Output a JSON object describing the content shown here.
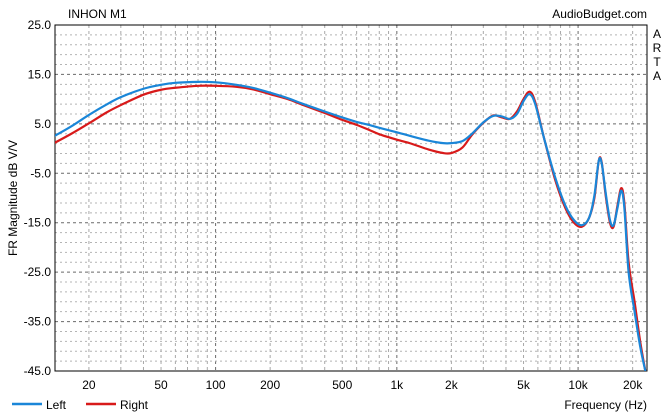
{
  "chart_data": {
    "type": "line",
    "title": "INHON M1",
    "source": "AudioBudget.com",
    "side_label": [
      "A",
      "R",
      "T",
      "A"
    ],
    "xlabel": "Frequency (Hz)",
    "ylabel": "FR Magnitude dB V/V",
    "xscale": "log",
    "xlim": [
      13,
      24000
    ],
    "ylim": [
      -45,
      25
    ],
    "yticks": [
      25.0,
      15.0,
      5.0,
      -5.0,
      -15.0,
      -25.0,
      -35.0,
      -45.0
    ],
    "ytick_labels": [
      "25.0",
      "15.0",
      "5.0",
      "-5.0",
      "-15.0",
      "-25.0",
      "-35.0",
      "-45.0"
    ],
    "xticks": [
      20,
      50,
      100,
      200,
      500,
      1000,
      2000,
      5000,
      10000,
      20000
    ],
    "xtick_labels": [
      "20",
      "50",
      "100",
      "200",
      "500",
      "1k",
      "2k",
      "5k",
      "10k",
      "20k"
    ],
    "grid": true,
    "legend_position": "bottom-left",
    "series": [
      {
        "name": "Left",
        "color": "#1a86d8",
        "points": [
          [
            13,
            2.6
          ],
          [
            16,
            4.5
          ],
          [
            20,
            6.8
          ],
          [
            25,
            8.9
          ],
          [
            30,
            10.4
          ],
          [
            40,
            12.1
          ],
          [
            50,
            12.9
          ],
          [
            60,
            13.3
          ],
          [
            80,
            13.5
          ],
          [
            100,
            13.4
          ],
          [
            130,
            12.9
          ],
          [
            160,
            12.3
          ],
          [
            200,
            11.3
          ],
          [
            250,
            10.2
          ],
          [
            300,
            9.1
          ],
          [
            400,
            7.5
          ],
          [
            500,
            6.3
          ],
          [
            600,
            5.4
          ],
          [
            700,
            4.8
          ],
          [
            800,
            4.2
          ],
          [
            1000,
            3.3
          ],
          [
            1200,
            2.5
          ],
          [
            1500,
            1.6
          ],
          [
            1800,
            1.1
          ],
          [
            2000,
            1.1
          ],
          [
            2300,
            1.5
          ],
          [
            2600,
            3.0
          ],
          [
            3000,
            5.3
          ],
          [
            3400,
            6.6
          ],
          [
            3800,
            6.5
          ],
          [
            4200,
            6.0
          ],
          [
            4600,
            7.0
          ],
          [
            5000,
            9.6
          ],
          [
            5400,
            11.0
          ],
          [
            5800,
            9.0
          ],
          [
            6500,
            2.0
          ],
          [
            7500,
            -6.0
          ],
          [
            8500,
            -11.5
          ],
          [
            9500,
            -14.5
          ],
          [
            10500,
            -15.5
          ],
          [
            11500,
            -14.0
          ],
          [
            12300,
            -9.5
          ],
          [
            13000,
            -2.5
          ],
          [
            13500,
            -3.0
          ],
          [
            14200,
            -9.0
          ],
          [
            15000,
            -14.5
          ],
          [
            15700,
            -15.5
          ],
          [
            16500,
            -12.0
          ],
          [
            17300,
            -8.5
          ],
          [
            18000,
            -12.0
          ],
          [
            19000,
            -25.0
          ],
          [
            20500,
            -33.0
          ],
          [
            22000,
            -40.0
          ],
          [
            23500,
            -45.0
          ]
        ]
      },
      {
        "name": "Right",
        "color": "#d81a1a",
        "points": [
          [
            13,
            1.2
          ],
          [
            16,
            3.0
          ],
          [
            20,
            5.1
          ],
          [
            25,
            7.3
          ],
          [
            30,
            8.8
          ],
          [
            40,
            10.9
          ],
          [
            50,
            11.9
          ],
          [
            60,
            12.3
          ],
          [
            80,
            12.7
          ],
          [
            100,
            12.7
          ],
          [
            130,
            12.5
          ],
          [
            160,
            12.0
          ],
          [
            200,
            11.0
          ],
          [
            250,
            10.0
          ],
          [
            300,
            8.9
          ],
          [
            400,
            7.2
          ],
          [
            500,
            5.8
          ],
          [
            600,
            4.8
          ],
          [
            700,
            3.8
          ],
          [
            800,
            2.9
          ],
          [
            1000,
            1.8
          ],
          [
            1200,
            1.0
          ],
          [
            1500,
            -0.2
          ],
          [
            1800,
            -0.9
          ],
          [
            2000,
            -0.9
          ],
          [
            2300,
            0.2
          ],
          [
            2600,
            2.8
          ],
          [
            3000,
            5.2
          ],
          [
            3400,
            6.7
          ],
          [
            3800,
            6.3
          ],
          [
            4200,
            6.0
          ],
          [
            4600,
            7.5
          ],
          [
            5000,
            10.0
          ],
          [
            5400,
            11.5
          ],
          [
            5800,
            9.4
          ],
          [
            6500,
            2.0
          ],
          [
            7500,
            -6.5
          ],
          [
            8500,
            -12.0
          ],
          [
            9500,
            -15.0
          ],
          [
            10500,
            -15.8
          ],
          [
            11500,
            -14.0
          ],
          [
            12300,
            -10.0
          ],
          [
            13000,
            -2.5
          ],
          [
            13500,
            -2.8
          ],
          [
            14200,
            -9.5
          ],
          [
            15000,
            -15.0
          ],
          [
            15700,
            -15.8
          ],
          [
            16500,
            -11.5
          ],
          [
            17300,
            -8.0
          ],
          [
            18000,
            -11.0
          ],
          [
            19000,
            -23.0
          ],
          [
            20500,
            -31.0
          ],
          [
            22000,
            -39.0
          ],
          [
            23500,
            -45.0
          ]
        ]
      }
    ]
  }
}
